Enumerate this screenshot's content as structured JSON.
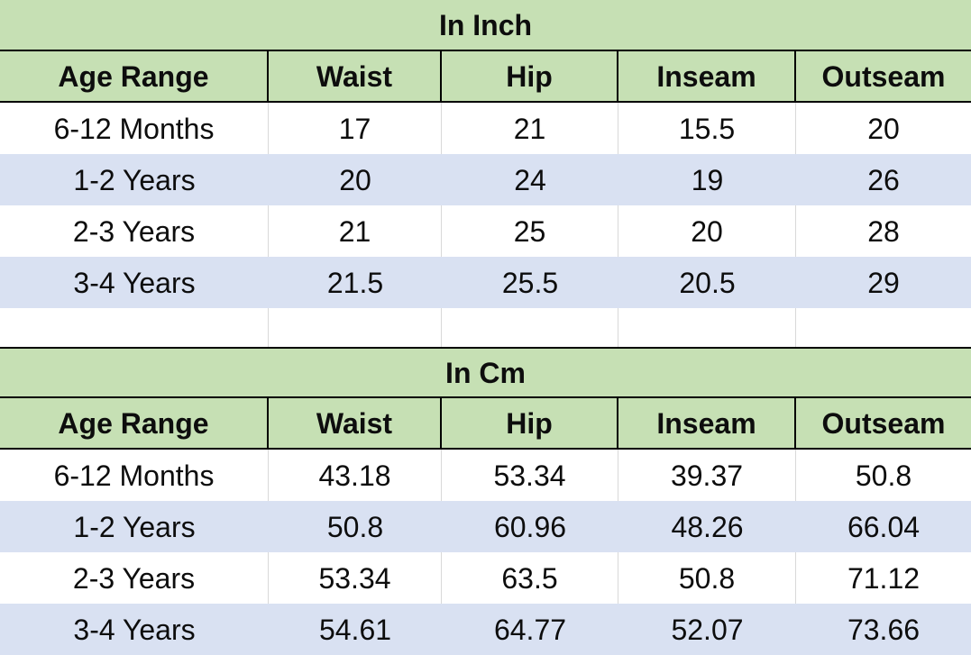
{
  "colors": {
    "header_green": "#c6e0b4",
    "row_alt": "#d9e1f2",
    "row_white": "#ffffff",
    "gridline": "#d9d9d9",
    "border_black": "#000000",
    "text": "#0d0d0d"
  },
  "chart_data": [
    {
      "type": "table",
      "title": "In Inch",
      "columns": [
        "Age Range",
        "Waist",
        "Hip",
        "Inseam",
        "Outseam"
      ],
      "rows": [
        [
          "6-12 Months",
          "17",
          "21",
          "15.5",
          "20"
        ],
        [
          "1-2 Years",
          "20",
          "24",
          "19",
          "26"
        ],
        [
          "2-3 Years",
          "21",
          "25",
          "20",
          "28"
        ],
        [
          "3-4 Years",
          "21.5",
          "25.5",
          "20.5",
          "29"
        ]
      ]
    },
    {
      "type": "table",
      "title": "In Cm",
      "columns": [
        "Age Range",
        "Waist",
        "Hip",
        "Inseam",
        "Outseam"
      ],
      "rows": [
        [
          "6-12 Months",
          "43.18",
          "53.34",
          "39.37",
          "50.8"
        ],
        [
          "1-2 Years",
          "50.8",
          "60.96",
          "48.26",
          "66.04"
        ],
        [
          "2-3 Years",
          "53.34",
          "63.5",
          "50.8",
          "71.12"
        ],
        [
          "3-4 Years",
          "54.61",
          "64.77",
          "52.07",
          "73.66"
        ]
      ]
    }
  ]
}
